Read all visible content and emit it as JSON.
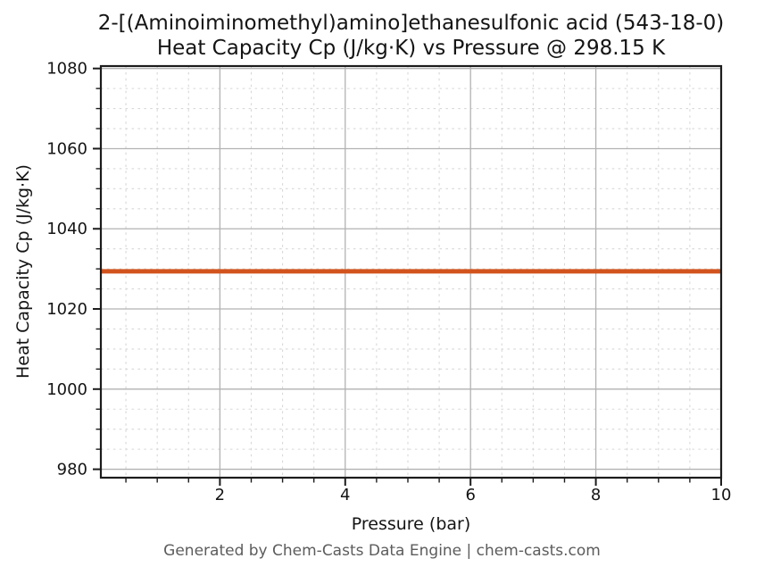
{
  "title": {
    "line1": "2-[(Aminoiminomethyl)amino]ethanesulfonic acid (543-18-0)",
    "line2": "Heat Capacity Cp (J/kg·K) vs Pressure @ 298.15 K"
  },
  "footer": {
    "text": "Generated by Chem-Casts Data Engine | chem-casts.com"
  },
  "chart_data": {
    "type": "line",
    "title": "2-[(Aminoiminomethyl)amino]ethanesulfonic acid (543-18-0)",
    "subtitle": "Heat Capacity Cp (J/kg·K) vs Pressure @ 298.15 K",
    "compound_cas": "543-18-0",
    "temperature": "298.15 K",
    "xlabel": "Pressure (bar)",
    "ylabel": "Heat Capacity Cp (J/kg·K)",
    "xlim": [
      0.1,
      10.0
    ],
    "ylim": [
      977.9,
      1080.6
    ],
    "x_ticks": [
      2,
      4,
      6,
      8,
      10
    ],
    "y_ticks": [
      980,
      1000,
      1020,
      1040,
      1060,
      1080
    ],
    "x_minor_step": 0.5,
    "y_minor_step": 5,
    "grid": {
      "major": true,
      "minor": true
    },
    "legend_position": "none",
    "series": [
      {
        "name": "Heat Capacity Cp",
        "color": "#d2531e",
        "x": [
          0.1,
          1,
          2,
          3,
          4,
          5,
          6,
          7,
          8,
          9,
          10
        ],
        "y": [
          1029.4,
          1029.4,
          1029.4,
          1029.4,
          1029.4,
          1029.4,
          1029.4,
          1029.4,
          1029.4,
          1029.4,
          1029.4
        ]
      }
    ]
  },
  "colors": {
    "background": "#ffffff",
    "text": "#141414",
    "axis": "#1c1c1c",
    "grid_major": "#b2b2b2",
    "grid_minor": "#d8d8d8",
    "footer_text": "#5c5c5c",
    "line": "#d2531e"
  }
}
